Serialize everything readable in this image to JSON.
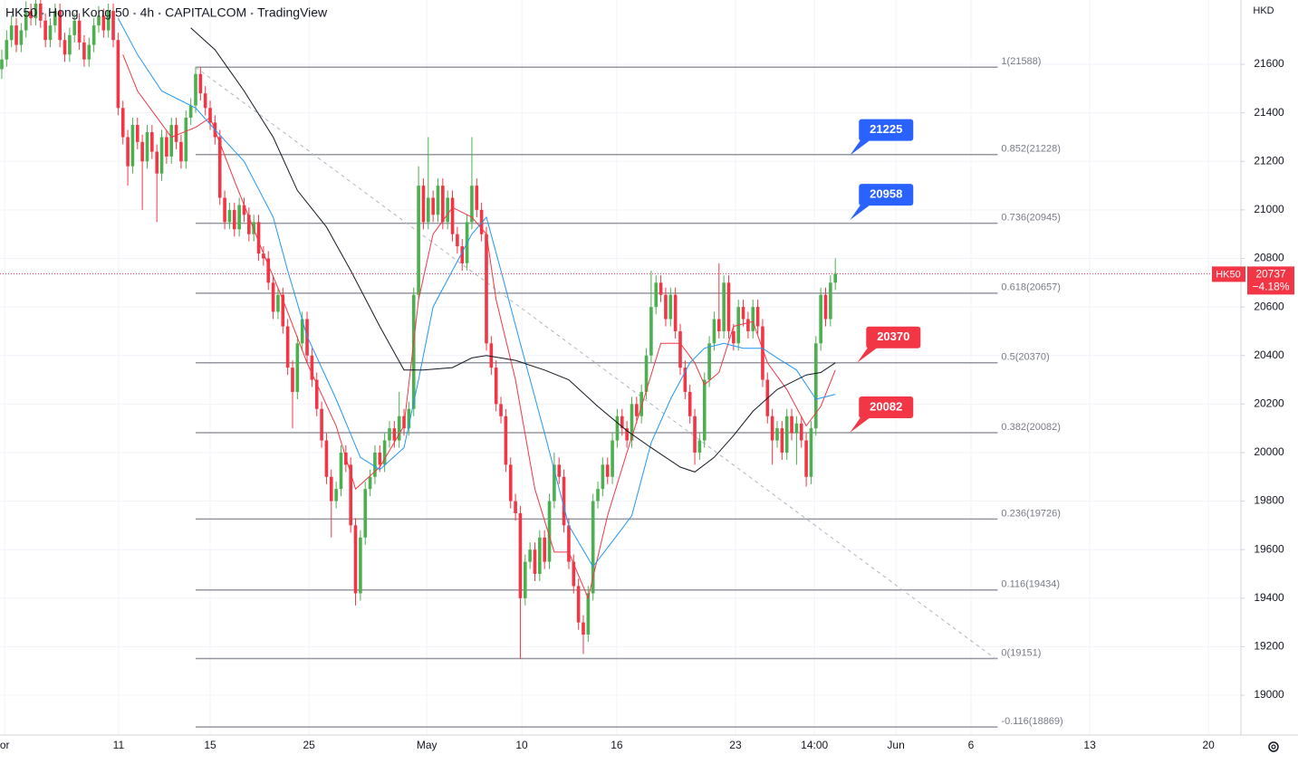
{
  "chart_data": {
    "type": "candlestick",
    "header": [
      "HK50",
      "Hong Kong 50",
      "4h",
      "CAPITALCOM",
      "TradingView"
    ],
    "currency": "HKD",
    "up_color": "#4caf50",
    "down_color": "#f23645",
    "grid": true,
    "ylim": [
      18836,
      21865
    ],
    "yticks": [
      19000,
      19200,
      19400,
      19600,
      19800,
      20000,
      20200,
      20400,
      20600,
      20800,
      21000,
      21200,
      21400,
      21600
    ],
    "xlim": [
      -0.37,
      255.7
    ],
    "xticks": [
      {
        "value": 0.6,
        "label": "or"
      },
      {
        "value": 24.1,
        "label": "11"
      },
      {
        "value": 43,
        "label": "15"
      },
      {
        "value": 63.4,
        "label": "25"
      },
      {
        "value": 87.7,
        "label": "May"
      },
      {
        "value": 107.3,
        "label": "10"
      },
      {
        "value": 126.9,
        "label": "16"
      },
      {
        "value": 151.4,
        "label": "23"
      },
      {
        "value": 167.7,
        "label": "14:00"
      },
      {
        "value": 184.5,
        "label": "Jun"
      },
      {
        "value": 200,
        "label": "6"
      },
      {
        "value": 224.5,
        "label": "13"
      },
      {
        "value": 249,
        "label": "20"
      }
    ],
    "ohlc": [
      [
        21580,
        21660,
        21540,
        21620
      ],
      [
        21620,
        21740,
        21590,
        21700
      ],
      [
        21700,
        21800,
        21670,
        21760
      ],
      [
        21760,
        21790,
        21650,
        21680
      ],
      [
        21680,
        21770,
        21650,
        21740
      ],
      [
        21740,
        21860,
        21710,
        21820
      ],
      [
        21820,
        21850,
        21760,
        21790
      ],
      [
        21790,
        21890,
        21760,
        21850
      ],
      [
        21850,
        21880,
        21750,
        21780
      ],
      [
        21780,
        21810,
        21670,
        21700
      ],
      [
        21700,
        21790,
        21670,
        21760
      ],
      [
        21760,
        21850,
        21730,
        21820
      ],
      [
        21820,
        21850,
        21670,
        21700
      ],
      [
        21700,
        21730,
        21610,
        21640
      ],
      [
        21640,
        21750,
        21610,
        21720
      ],
      [
        21720,
        21810,
        21690,
        21780
      ],
      [
        21780,
        21810,
        21660,
        21690
      ],
      [
        21690,
        21720,
        21590,
        21620
      ],
      [
        21620,
        21710,
        21590,
        21680
      ],
      [
        21680,
        21790,
        21650,
        21760
      ],
      [
        21760,
        21840,
        21730,
        21800
      ],
      [
        21800,
        21830,
        21710,
        21740
      ],
      [
        21740,
        21850,
        21710,
        21820
      ],
      [
        21820,
        21850,
        21670,
        21700
      ],
      [
        21700,
        21730,
        21390,
        21420
      ],
      [
        21420,
        21450,
        21270,
        21300
      ],
      [
        21300,
        21330,
        21100,
        21180
      ],
      [
        21180,
        21380,
        21150,
        21350
      ],
      [
        21350,
        21380,
        21250,
        21280
      ],
      [
        21280,
        21310,
        21000,
        21200
      ],
      [
        21200,
        21350,
        21170,
        21320
      ],
      [
        21320,
        21350,
        21210,
        21240
      ],
      [
        21240,
        21270,
        20950,
        21150
      ],
      [
        21150,
        21330,
        21120,
        21300
      ],
      [
        21300,
        21330,
        21190,
        21220
      ],
      [
        21220,
        21380,
        21190,
        21350
      ],
      [
        21350,
        21380,
        21250,
        21280
      ],
      [
        21280,
        21310,
        21170,
        21200
      ],
      [
        21200,
        21410,
        21170,
        21380
      ],
      [
        21380,
        21460,
        21350,
        21430
      ],
      [
        21430,
        21590,
        21400,
        21560
      ],
      [
        21560,
        21590,
        21450,
        21480
      ],
      [
        21480,
        21510,
        21390,
        21420
      ],
      [
        21420,
        21450,
        21330,
        21360
      ],
      [
        21360,
        21390,
        21270,
        21300
      ],
      [
        21300,
        21330,
        21020,
        21050
      ],
      [
        21050,
        21080,
        20920,
        20950
      ],
      [
        20950,
        21030,
        20920,
        21000
      ],
      [
        21000,
        21030,
        20890,
        20920
      ],
      [
        20920,
        21050,
        20890,
        21020
      ],
      [
        21020,
        21050,
        20950,
        20980
      ],
      [
        20980,
        21010,
        20870,
        20900
      ],
      [
        20900,
        20980,
        20870,
        20950
      ],
      [
        20950,
        20980,
        20790,
        20820
      ],
      [
        20820,
        20850,
        20770,
        20800
      ],
      [
        20800,
        20830,
        20670,
        20700
      ],
      [
        20700,
        20730,
        20550,
        20580
      ],
      [
        20580,
        20680,
        20550,
        20650
      ],
      [
        20650,
        20680,
        20490,
        20520
      ],
      [
        20520,
        20550,
        20320,
        20350
      ],
      [
        20350,
        20380,
        20100,
        20250
      ],
      [
        20250,
        20480,
        20220,
        20450
      ],
      [
        20450,
        20580,
        20420,
        20550
      ],
      [
        20550,
        20580,
        20370,
        20400
      ],
      [
        20400,
        20430,
        20270,
        20300
      ],
      [
        20300,
        20330,
        20150,
        20180
      ],
      [
        20180,
        20210,
        20020,
        20050
      ],
      [
        20050,
        20080,
        19870,
        19900
      ],
      [
        19900,
        19930,
        19650,
        19800
      ],
      [
        19800,
        19880,
        19770,
        19850
      ],
      [
        19850,
        20030,
        19820,
        20000
      ],
      [
        20000,
        20030,
        19920,
        19950
      ],
      [
        19950,
        19980,
        19670,
        19700
      ],
      [
        19700,
        19730,
        19370,
        19420
      ],
      [
        19420,
        19680,
        19390,
        19650
      ],
      [
        19650,
        19880,
        19620,
        19850
      ],
      [
        19850,
        19930,
        19820,
        19900
      ],
      [
        19900,
        20030,
        19870,
        20000
      ],
      [
        20000,
        20030,
        19920,
        19950
      ],
      [
        19950,
        20080,
        19920,
        20050
      ],
      [
        20050,
        20130,
        20020,
        20100
      ],
      [
        20100,
        20130,
        20020,
        20050
      ],
      [
        20050,
        20250,
        20020,
        20150
      ],
      [
        20150,
        20180,
        20070,
        20100
      ],
      [
        20100,
        20210,
        20070,
        20180
      ],
      [
        20180,
        20680,
        20150,
        20650
      ],
      [
        20650,
        21180,
        20620,
        21100
      ],
      [
        21100,
        21130,
        20920,
        20950
      ],
      [
        20950,
        21300,
        20920,
        21050
      ],
      [
        21050,
        21080,
        20950,
        20980
      ],
      [
        20980,
        21130,
        20950,
        21100
      ],
      [
        21100,
        21130,
        20920,
        20950
      ],
      [
        20950,
        21080,
        20920,
        21050
      ],
      [
        21050,
        21080,
        20870,
        20900
      ],
      [
        20900,
        20930,
        20820,
        20850
      ],
      [
        20850,
        20880,
        20750,
        20780
      ],
      [
        20780,
        20980,
        20750,
        20950
      ],
      [
        20950,
        21300,
        20920,
        21100
      ],
      [
        21100,
        21130,
        20970,
        21000
      ],
      [
        21000,
        21030,
        20870,
        20900
      ],
      [
        20900,
        20930,
        20420,
        20450
      ],
      [
        20450,
        20480,
        20320,
        20350
      ],
      [
        20350,
        20380,
        20170,
        20200
      ],
      [
        20200,
        20230,
        20120,
        20150
      ],
      [
        20150,
        20180,
        19920,
        19950
      ],
      [
        19950,
        19980,
        19770,
        19800
      ],
      [
        19800,
        19830,
        19720,
        19750
      ],
      [
        19750,
        19780,
        19150,
        19400
      ],
      [
        19400,
        19580,
        19370,
        19550
      ],
      [
        19550,
        19630,
        19520,
        19600
      ],
      [
        19600,
        19630,
        19470,
        19500
      ],
      [
        19500,
        19680,
        19470,
        19650
      ],
      [
        19650,
        19680,
        19520,
        19550
      ],
      [
        19550,
        19830,
        19520,
        19800
      ],
      [
        19800,
        20000,
        19770,
        19950
      ],
      [
        19950,
        19980,
        19870,
        19900
      ],
      [
        19900,
        19930,
        19670,
        19700
      ],
      [
        19700,
        19730,
        19520,
        19550
      ],
      [
        19550,
        19580,
        19420,
        19450
      ],
      [
        19450,
        19480,
        19270,
        19300
      ],
      [
        19300,
        19330,
        19170,
        19250
      ],
      [
        19250,
        19450,
        19220,
        19420
      ],
      [
        19420,
        19830,
        19390,
        19800
      ],
      [
        19800,
        19880,
        19770,
        19850
      ],
      [
        19850,
        19980,
        19820,
        19950
      ],
      [
        19950,
        19980,
        19870,
        19900
      ],
      [
        19900,
        20080,
        19870,
        20050
      ],
      [
        20050,
        20180,
        20020,
        20150
      ],
      [
        20150,
        20180,
        20070,
        20100
      ],
      [
        20100,
        20130,
        20020,
        20050
      ],
      [
        20050,
        20230,
        20020,
        20200
      ],
      [
        20200,
        20230,
        20120,
        20150
      ],
      [
        20150,
        20280,
        20120,
        20250
      ],
      [
        20250,
        20430,
        20220,
        20400
      ],
      [
        20400,
        20750,
        20370,
        20600
      ],
      [
        20600,
        20730,
        20570,
        20700
      ],
      [
        20700,
        20730,
        20620,
        20650
      ],
      [
        20650,
        20680,
        20520,
        20550
      ],
      [
        20550,
        20680,
        20520,
        20650
      ],
      [
        20650,
        20680,
        20470,
        20500
      ],
      [
        20500,
        20530,
        20320,
        20350
      ],
      [
        20350,
        20380,
        20220,
        20250
      ],
      [
        20250,
        20280,
        20120,
        20150
      ],
      [
        20150,
        20180,
        19950,
        20000
      ],
      [
        20000,
        20080,
        19970,
        20050
      ],
      [
        20050,
        20330,
        20020,
        20300
      ],
      [
        20300,
        20480,
        20270,
        20450
      ],
      [
        20450,
        20580,
        20420,
        20550
      ],
      [
        20550,
        20780,
        20470,
        20500
      ],
      [
        20500,
        20730,
        20470,
        20700
      ],
      [
        20700,
        20730,
        20470,
        20500
      ],
      [
        20500,
        20530,
        20420,
        20450
      ],
      [
        20450,
        20630,
        20420,
        20600
      ],
      [
        20600,
        20630,
        20520,
        20550
      ],
      [
        20550,
        20580,
        20470,
        20500
      ],
      [
        20500,
        20630,
        20470,
        20600
      ],
      [
        20600,
        20630,
        20490,
        20520
      ],
      [
        20520,
        20550,
        20270,
        20300
      ],
      [
        20300,
        20330,
        20120,
        20150
      ],
      [
        20150,
        20180,
        19950,
        20050
      ],
      [
        20050,
        20130,
        20020,
        20100
      ],
      [
        20100,
        20130,
        19970,
        20000
      ],
      [
        20000,
        20180,
        19970,
        20150
      ],
      [
        20150,
        20180,
        20050,
        20080
      ],
      [
        20080,
        20150,
        19950,
        20120
      ],
      [
        20120,
        20150,
        20020,
        20050
      ],
      [
        20050,
        20080,
        19860,
        19900
      ],
      [
        19900,
        20130,
        19870,
        20100
      ],
      [
        20100,
        20480,
        20070,
        20450
      ],
      [
        20450,
        20680,
        20420,
        20650
      ],
      [
        20650,
        20680,
        20520,
        20550
      ],
      [
        20550,
        20730,
        20520,
        20700
      ],
      [
        20700,
        20800,
        20670,
        20737
      ]
    ],
    "moving_averages": [
      {
        "color": "#f23645",
        "x": [
          25,
          28,
          35,
          40,
          43,
          48,
          54,
          58,
          63,
          69,
          73,
          78,
          83,
          86,
          89,
          93,
          97,
          100,
          102,
          106,
          110,
          114,
          117,
          121,
          125,
          129,
          132,
          136,
          140,
          143,
          145,
          148,
          151,
          155,
          158,
          162,
          166,
          169,
          172
        ],
        "values": [
          21640,
          21490,
          21300,
          21340,
          21380,
          21120,
          20820,
          20630,
          20370,
          20110,
          19850,
          19940,
          20110,
          20630,
          20900,
          21010,
          20970,
          20900,
          20630,
          20300,
          19850,
          19590,
          19590,
          19400,
          19740,
          20000,
          20190,
          20450,
          20450,
          20370,
          20280,
          20330,
          20520,
          20540,
          20370,
          20260,
          20110,
          20190,
          20340
        ]
      },
      {
        "color": "#2196f3",
        "x": [
          24,
          28,
          33,
          40,
          44,
          50,
          56,
          59,
          63,
          69,
          74,
          78,
          83,
          86,
          89,
          93,
          97,
          100,
          103,
          107,
          112,
          117,
          122,
          127,
          130,
          134,
          138,
          142,
          145,
          149,
          153,
          157,
          160,
          164,
          168,
          172
        ],
        "values": [
          21790,
          21640,
          21490,
          21420,
          21330,
          21200,
          20970,
          20750,
          20480,
          20220,
          19980,
          19930,
          20020,
          20300,
          20600,
          20750,
          20900,
          20970,
          20750,
          20450,
          20080,
          19700,
          19530,
          19660,
          19740,
          20040,
          20220,
          20370,
          20430,
          20450,
          20430,
          20430,
          20390,
          20340,
          20220,
          20240
        ]
      },
      {
        "color": "#131722",
        "x": [
          39,
          44,
          50,
          56,
          61,
          67,
          72,
          78,
          83,
          87,
          93,
          97,
          100,
          106,
          112,
          117,
          123,
          129,
          134,
          140,
          143,
          147,
          151,
          155,
          160,
          166,
          169,
          172
        ],
        "values": [
          21750,
          21660,
          21490,
          21300,
          21080,
          20930,
          20750,
          20520,
          20340,
          20340,
          20350,
          20390,
          20400,
          20380,
          20340,
          20300,
          20190,
          20090,
          20020,
          19940,
          19920,
          19980,
          20070,
          20170,
          20260,
          20320,
          20330,
          20370
        ]
      }
    ],
    "trendline": {
      "x": [
        40,
        205
      ],
      "y": [
        21588,
        19151
      ]
    },
    "fib": {
      "x": [
        40,
        205.5
      ],
      "levels": [
        {
          "label": "1(21588)",
          "value": 21588
        },
        {
          "label": "0.852(21228)",
          "value": 21228
        },
        {
          "label": "0.736(20945)",
          "value": 20945
        },
        {
          "label": "0.618(20657)",
          "value": 20657
        },
        {
          "label": "0.5(20370)",
          "value": 20370
        },
        {
          "label": "0.382(20082)",
          "value": 20082
        },
        {
          "label": "0.236(19726)",
          "value": 19726
        },
        {
          "label": "0.116(19434)",
          "value": 19434
        },
        {
          "label": "0(19151)",
          "value": 19151
        },
        {
          "label": "-0.116(18869)",
          "value": 18869
        }
      ]
    },
    "callouts": [
      {
        "value": 21225,
        "color": "#2962ff",
        "x": 175
      },
      {
        "value": 20958,
        "color": "#2962ff",
        "x": 175
      },
      {
        "value": 20370,
        "color": "#f23645",
        "x": 176.5
      },
      {
        "value": 20082,
        "color": "#f23645",
        "x": 175
      }
    ],
    "last_price": {
      "symbol": "HK50",
      "value": 20737,
      "change": "−4.18%",
      "color": "#f23645"
    }
  }
}
